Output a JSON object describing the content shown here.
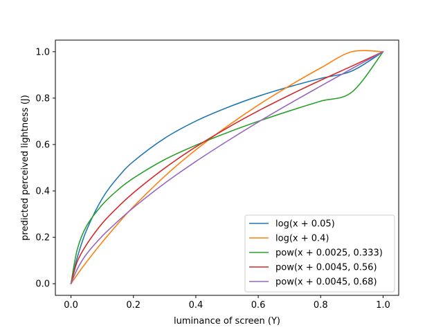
{
  "chart_data": {
    "type": "line",
    "title": "",
    "xlabel": "luminance of screen (Y)",
    "ylabel": "predicted perceived lightness (J)",
    "xlim": [
      -0.05,
      1.05
    ],
    "ylim": [
      -0.05,
      1.05
    ],
    "grid": false,
    "legend_position": "lower-right",
    "xticks": [
      0.0,
      0.2,
      0.4,
      0.6,
      0.8,
      1.0
    ],
    "yticks": [
      0.0,
      0.2,
      0.4,
      0.6,
      0.8,
      1.0
    ],
    "xtick_labels": [
      "0.0",
      "0.2",
      "0.4",
      "0.6",
      "0.8",
      "1.0"
    ],
    "ytick_labels": [
      "0.0",
      "0.2",
      "0.4",
      "0.6",
      "0.8",
      "1.0"
    ],
    "x": [
      0.0,
      0.02,
      0.05,
      0.1,
      0.15,
      0.2,
      0.3,
      0.4,
      0.5,
      0.6,
      0.7,
      0.8,
      0.9,
      1.0
    ],
    "series": [
      {
        "name": "log(x + 0.05)",
        "color": "#1f77b4",
        "values": [
          0.0,
          0.112,
          0.231,
          0.367,
          0.458,
          0.527,
          0.627,
          0.701,
          0.759,
          0.808,
          0.849,
          0.885,
          0.917,
          1.0
        ]
      },
      {
        "name": "log(x + 0.4)",
        "color": "#ff7f0e",
        "values": [
          0.0,
          0.039,
          0.094,
          0.179,
          0.258,
          0.332,
          0.463,
          0.577,
          0.678,
          0.77,
          0.853,
          0.93,
          1.0,
          1.0
        ]
      },
      {
        "name": "pow(x + 0.0025, 0.333)",
        "color": "#2ca02c",
        "values": [
          0.0,
          0.147,
          0.249,
          0.34,
          0.404,
          0.455,
          0.535,
          0.597,
          0.651,
          0.7,
          0.745,
          0.787,
          0.826,
          1.0
        ]
      },
      {
        "name": "pow(x + 0.0045, 0.56)",
        "color": "#d62728",
        "values": [
          0.0,
          0.095,
          0.169,
          0.26,
          0.33,
          0.392,
          0.498,
          0.59,
          0.671,
          0.745,
          0.813,
          0.877,
          0.938,
          1.0
        ]
      },
      {
        "name": "pow(x + 0.0045, 0.68)",
        "color": "#9467bd",
        "values": [
          0.0,
          0.063,
          0.128,
          0.205,
          0.269,
          0.328,
          0.433,
          0.527,
          0.614,
          0.697,
          0.776,
          0.852,
          0.927,
          1.0
        ]
      }
    ]
  }
}
